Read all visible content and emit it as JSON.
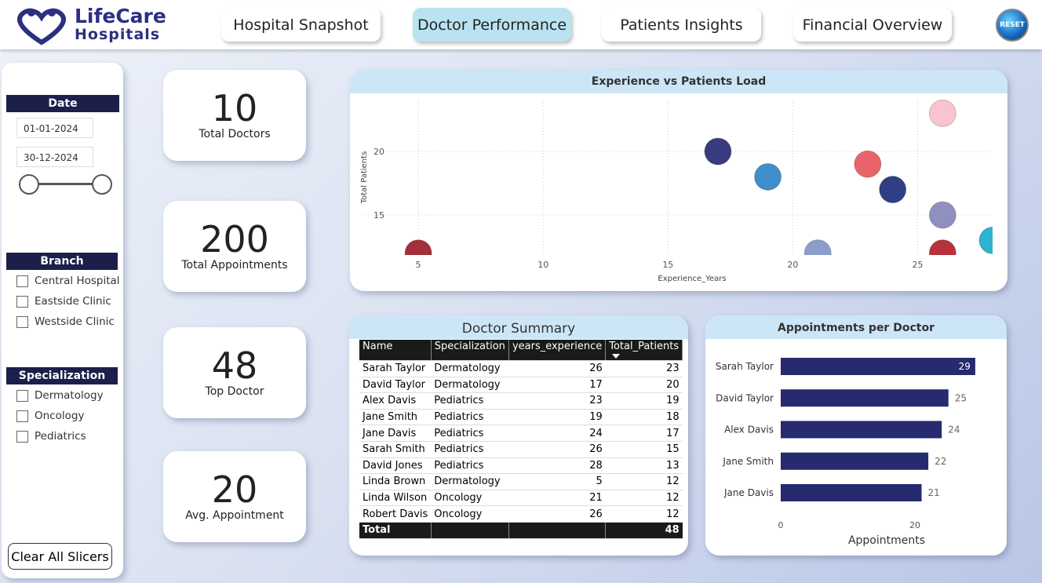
{
  "header": {
    "logo_line1": "LifeCare",
    "logo_line2": "Hospitals",
    "nav": [
      "Hospital Snapshot",
      "Doctor Performance",
      "Patients Insights",
      "Financial Overview"
    ],
    "reset": "RESET"
  },
  "filters": {
    "date": {
      "title": "Date",
      "start": "01-01-2024",
      "end": "30-12-2024"
    },
    "branch": {
      "title": "Branch",
      "options": [
        "Central Hospital",
        "Eastside Clinic",
        "Westside Clinic"
      ]
    },
    "specialization": {
      "title": "Specialization",
      "options": [
        "Dermatology",
        "Oncology",
        "Pediatrics"
      ]
    },
    "clear": "Clear All Slicers"
  },
  "kpis": [
    {
      "value": 10,
      "label": "Total Doctors"
    },
    {
      "value": 200,
      "label": "Total Appointments"
    },
    {
      "value": 48,
      "label": "Top Doctor"
    },
    {
      "value": 20,
      "label": "Avg. Appointment"
    }
  ],
  "chart_data": [
    {
      "type": "scatter",
      "title": "Experience vs Patients Load",
      "x_label": "Experience_Years",
      "y_label": "Total Patients",
      "x": [
        26,
        17,
        23,
        19,
        24,
        26,
        28,
        5,
        21,
        26
      ],
      "values": [
        23,
        20,
        19,
        18,
        17,
        15,
        13,
        12,
        12,
        12
      ],
      "colors": [
        "#f9c3cf",
        "#383b7e",
        "#e9636a",
        "#3e8fca",
        "#2e3f86",
        "#9090c0",
        "#2db2d0",
        "#a3303a",
        "#8c9dca",
        "#b8323b"
      ],
      "xlim": [
        2.86,
        28
      ],
      "ylim": [
        11.85,
        24.07
      ],
      "xticks": [
        5,
        10,
        15,
        20,
        25
      ],
      "yticks": [
        15,
        20
      ],
      "grid": true
    },
    {
      "type": "bar",
      "orientation": "horizontal",
      "title": "Appointments per Doctor",
      "x_label": "Appointments",
      "categories": [
        "Sarah Taylor",
        "David Taylor",
        "Alex Davis",
        "Jane Smith",
        "Jane Davis"
      ],
      "values": [
        29,
        25,
        24,
        22,
        21
      ],
      "color": "#262a6e",
      "xlim": [
        0,
        30
      ],
      "xticks": [
        0,
        20
      ]
    }
  ],
  "table": {
    "title": "Doctor Summary",
    "columns": [
      "Name",
      "Specialization",
      "years_experience",
      "Total_Patients"
    ],
    "rows": [
      [
        "Sarah Taylor",
        "Dermatology",
        26,
        23
      ],
      [
        "David Taylor",
        "Dermatology",
        17,
        20
      ],
      [
        "Alex Davis",
        "Pediatrics",
        23,
        19
      ],
      [
        "Jane Smith",
        "Pediatrics",
        19,
        18
      ],
      [
        "Jane Davis",
        "Pediatrics",
        24,
        17
      ],
      [
        "Sarah Smith",
        "Pediatrics",
        26,
        15
      ],
      [
        "David Jones",
        "Pediatrics",
        28,
        13
      ],
      [
        "Linda Brown",
        "Dermatology",
        5,
        12
      ],
      [
        "Linda Wilson",
        "Oncology",
        21,
        12
      ],
      [
        "Robert Davis",
        "Oncology",
        26,
        12
      ]
    ],
    "total": [
      "Total",
      48
    ]
  }
}
